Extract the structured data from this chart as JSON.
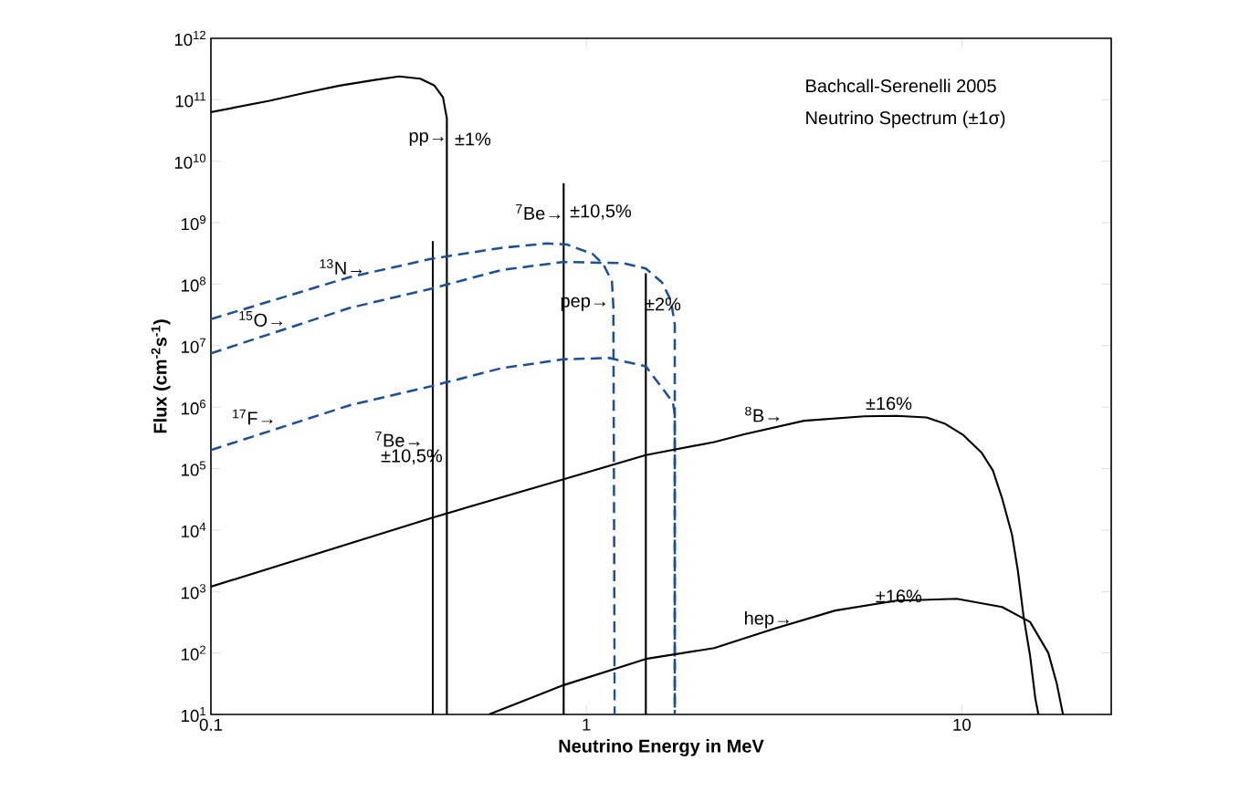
{
  "chart_data": {
    "type": "line",
    "title": "Bachcall-Serenelli 2005",
    "subtitle": "Neutrino Spectrum (±1σ)",
    "xlabel": "Neutrino Energy in MeV",
    "ylabel": "Flux (cm$^{-2}$s$^{-1}$)",
    "log": "xy",
    "xlim": [
      0.1,
      25
    ],
    "ylim": [
      10,
      1000000000000.0
    ],
    "xticks": [
      0.1,
      1,
      10
    ],
    "yticks": [
      {
        "value": 10,
        "label": "10$^{1}$"
      },
      {
        "value": 100,
        "label": "10$^{2}$"
      },
      {
        "value": 1000,
        "label": "10$^{3}$"
      },
      {
        "value": 10000.0,
        "label": "10$^{4}$"
      },
      {
        "value": 100000.0,
        "label": "10$^{5}$"
      },
      {
        "value": 1000000.0,
        "label": "10$^{6}$"
      },
      {
        "value": 10000000.0,
        "label": "10$^{7}$"
      },
      {
        "value": 100000000.0,
        "label": "10$^{8}$"
      },
      {
        "value": 1000000000.0,
        "label": "10$^{9}$"
      },
      {
        "value": 10000000000.0,
        "label": "10$^{10}$"
      },
      {
        "value": 100000000000.0,
        "label": "10$^{11}$"
      },
      {
        "value": 1000000000000.0,
        "label": "10$^{12}$"
      }
    ],
    "marker": "none",
    "line_style": "solid",
    "series": [
      {
        "color": "#000000",
        "x": [
          0.1,
          0.143,
          0.178,
          0.22,
          0.273,
          0.317,
          0.361,
          0.394,
          0.415,
          0.425,
          0.425
        ],
        "values": [
          63000000000.0,
          96000000000.0,
          130000000000.0,
          170000000000.0,
          210000000000.0,
          240000000000.0,
          220000000000.0,
          170000000000.0,
          110000000000.0,
          50000000000.0,
          10
        ]
      },
      {
        "color": "#000000",
        "x": [
          0.39,
          0.39
        ],
        "values": [
          10,
          500000000.0
        ]
      },
      {
        "color": "#000000",
        "x": [
          0.87,
          0.87
        ],
        "values": [
          10,
          4400000000.0
        ]
      },
      {
        "color": "#000000",
        "x": [
          1.44,
          1.44
        ],
        "values": [
          10,
          150000000.0
        ]
      },
      {
        "color": "#1a4f9e",
        "line_style": "dashed",
        "x": [
          0.1,
          0.234,
          0.388,
          0.594,
          0.785,
          0.89,
          1.04,
          1.11,
          1.17,
          1.18,
          1.19
        ],
        "values": [
          27000000.0,
          130000000.0,
          260000000.0,
          390000000.0,
          460000000.0,
          440000000.0,
          310000000.0,
          210000000.0,
          110000000.0,
          43000000.0,
          10
        ]
      },
      {
        "color": "#1a4f9e",
        "line_style": "dashed",
        "x": [
          0.1,
          0.234,
          0.388,
          0.594,
          0.87,
          1.25,
          1.44,
          1.59,
          1.68,
          1.72,
          1.72
        ],
        "values": [
          7500000.0,
          41000000.0,
          85000000.0,
          170000000.0,
          230000000.0,
          220000000.0,
          180000000.0,
          107000000.0,
          54000000.0,
          22000000.0,
          10
        ]
      },
      {
        "color": "#1a4f9e",
        "line_style": "dashed",
        "x": [
          0.1,
          0.234,
          0.388,
          0.594,
          0.87,
          1.15,
          1.44,
          1.56,
          1.7,
          1.72,
          1.72
        ],
        "values": [
          200000.0,
          1070000.0,
          2200000.0,
          4300000.0,
          6000000.0,
          6300000.0,
          4600000.0,
          2400000.0,
          1200000.0,
          760000.0,
          10
        ]
      },
      {
        "color": "#000000",
        "x": [
          0.1,
          0.39,
          0.87,
          1.44,
          2.19,
          2.63,
          3.8,
          5.5,
          6.7,
          8.05,
          9.0,
          10.1,
          11.3,
          12.1,
          12.8,
          13.6,
          14.1,
          14.6,
          15.2,
          15.7,
          16.0
        ],
        "values": [
          1200.0,
          16000.0,
          67000.0,
          166000.0,
          270000.0,
          360000.0,
          600000.0,
          710000.0,
          720000.0,
          680000.0,
          540000.0,
          350000.0,
          180000.0,
          93000.0,
          33000.0,
          8500.0,
          2200.0,
          400,
          90,
          18,
          10
        ]
      },
      {
        "color": "#000000",
        "x": [
          0.55,
          0.87,
          1.44,
          2.19,
          3.18,
          4.6,
          6.7,
          9.7,
          12.8,
          15.2,
          17,
          17.9,
          18.6
        ],
        "values": [
          10,
          30,
          80,
          120,
          250,
          490,
          710,
          760,
          560,
          320,
          100,
          32,
          10
        ]
      }
    ],
    "annotations": [
      "pp→",
      "±1%",
      "$^{7}$Be→",
      "±10,5%",
      "pep→",
      "±2%",
      "$^{13}$N→",
      "$^{15}$O→",
      "$^{17}$F→",
      "$^{7}$Be→",
      "±10,5%",
      "$^{8}$B→",
      "±16%",
      "hep→",
      "±16%"
    ]
  }
}
